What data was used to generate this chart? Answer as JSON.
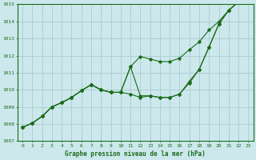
{
  "bg_color": "#cce8ec",
  "line_color": "#1a6b1a",
  "grid_color": "#aacccc",
  "x_min": 0,
  "x_max": 23,
  "y_min": 1007,
  "y_max": 1015,
  "s1": [
    1007.8,
    1008.05,
    1008.45,
    1009.0,
    1009.25,
    1009.55,
    1009.95,
    1010.3,
    1010.0,
    1009.85,
    1009.85,
    1009.75,
    1009.55,
    1009.65,
    1009.55,
    1009.55,
    1009.75,
    1010.5,
    1011.2,
    1012.5,
    1013.85,
    1014.65,
    1015.15,
    1015.7
  ],
  "s2": [
    1007.8,
    1008.05,
    1008.45,
    1009.0,
    1009.25,
    1009.55,
    1009.95,
    1010.3,
    1010.0,
    1009.85,
    1009.85,
    1011.35,
    1009.65,
    1009.65,
    1009.55,
    1009.55,
    1009.75,
    1010.4,
    1011.2,
    1012.5,
    1013.85,
    1014.65,
    1015.15,
    1015.7
  ],
  "s3": [
    1007.8,
    1008.05,
    1008.45,
    1009.0,
    1009.25,
    1009.55,
    1009.95,
    1010.3,
    1010.0,
    1009.85,
    1009.85,
    1011.35,
    1011.95,
    1011.8,
    1011.65,
    1011.65,
    1011.85,
    1012.35,
    1012.8,
    1013.5,
    1014.0,
    1014.65,
    1015.15,
    1015.7
  ],
  "bottom_label": "Graphe pression niveau de la mer (hPa)"
}
